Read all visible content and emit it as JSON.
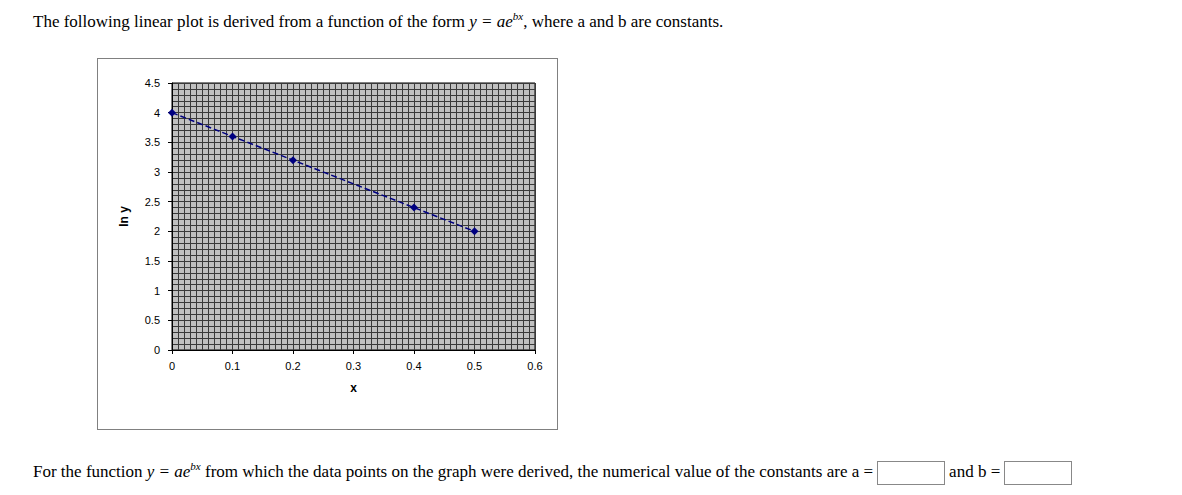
{
  "intro": {
    "before": "The following linear plot is derived from a function of the form",
    "formula_base": "y = ae",
    "formula_exponent": "bx",
    "after": ", where a and b are constants."
  },
  "question": {
    "before": "For the function",
    "formula_base": "y = ae",
    "formula_exponent": "bx",
    "after": "from which the data points on the graph were derived, the numerical value of the constants are",
    "answer_labels": [
      "a =",
      "and b ="
    ]
  },
  "chart_data": {
    "type": "line",
    "x_label": "x",
    "y_label": "ln y",
    "x": [
      0,
      0.1,
      0.2,
      0.4,
      0.5
    ],
    "values": [
      4,
      3.6,
      3.2,
      2.4,
      2.0
    ],
    "color": "#000080",
    "marker": "diamond",
    "line_style": "dashed",
    "xlim": [
      0,
      0.6
    ],
    "xticks": [
      0,
      0.1,
      0.2,
      0.3,
      0.4,
      0.5,
      0.6
    ],
    "ylim": [
      0,
      4.5
    ],
    "yticks": [
      0,
      0.5,
      1,
      1.5,
      2,
      2.5,
      3,
      3.5,
      4,
      4.5
    ],
    "grid": true
  }
}
